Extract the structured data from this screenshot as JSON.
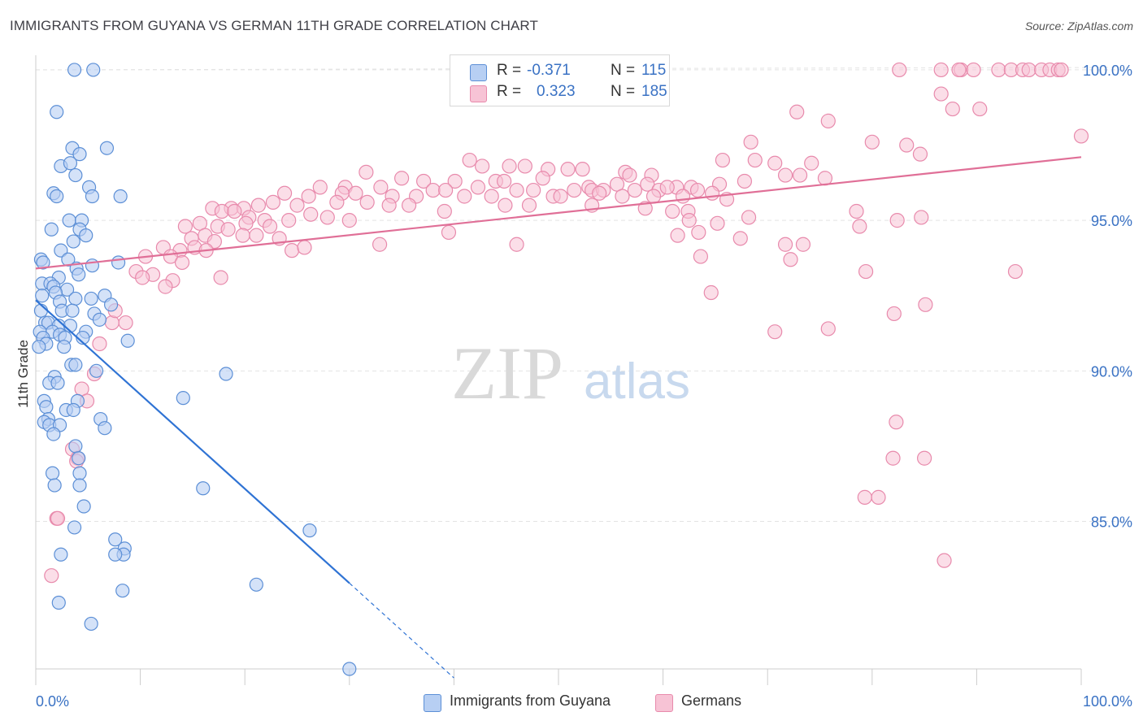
{
  "header": {
    "title": "IMMIGRANTS FROM GUYANA VS GERMAN 11TH GRADE CORRELATION CHART",
    "source": "Source: ZipAtlas.com"
  },
  "watermark": {
    "zip": "ZIP",
    "atlas": "atlas"
  },
  "legend": {
    "rows": [
      {
        "r_label": "R =",
        "r_value": "-0.371",
        "n_label": "N =",
        "n_value": "115"
      },
      {
        "r_label": "R =",
        "r_value": "0.323",
        "n_label": "N =",
        "n_value": "185"
      }
    ]
  },
  "bottom_legend": {
    "guyana": "Immigrants from Guyana",
    "germans": "Germans"
  },
  "colors": {
    "guyana_fill": "#b7cff3",
    "guyana_stroke": "#5c8fd6",
    "guyana_line": "#2f73d4",
    "germans_fill": "#f7c3d5",
    "germans_stroke": "#e88aac",
    "germans_line": "#e06f97",
    "tick_label": "#3a72c4",
    "grid": "#e4e4e4"
  },
  "chart_data": {
    "type": "scatter",
    "title": "IMMIGRANTS FROM GUYANA VS GERMAN 11TH GRADE CORRELATION CHART",
    "xlabel": "",
    "ylabel": "11th Grade",
    "xlim": [
      0,
      100
    ],
    "ylim": [
      80.1,
      100.7
    ],
    "x_tick_labels": [
      "0.0%",
      "100.0%"
    ],
    "y_ticks": [
      85,
      90,
      95,
      100
    ],
    "y_tick_labels": [
      "85.0%",
      "90.0%",
      "95.0%",
      "100.0%"
    ],
    "grid": true,
    "legend_position": "top-center",
    "series": [
      {
        "name": "Immigrants from Guyana",
        "r": -0.371,
        "n": 115,
        "trend": {
          "x": [
            0,
            30
          ],
          "y": [
            92.35,
            82.95
          ]
        },
        "trend_dashed": {
          "x": [
            30,
            40
          ],
          "y": [
            82.95,
            79.8
          ]
        },
        "points": [
          [
            3.7,
            100
          ],
          [
            5.5,
            100
          ],
          [
            2,
            98.6
          ],
          [
            3.5,
            97.4
          ],
          [
            4.2,
            97.2
          ],
          [
            6.8,
            97.4
          ],
          [
            2.4,
            96.8
          ],
          [
            3.3,
            96.9
          ],
          [
            3.8,
            96.5
          ],
          [
            5.1,
            96.1
          ],
          [
            1.7,
            95.9
          ],
          [
            2.0,
            95.8
          ],
          [
            5.4,
            95.8
          ],
          [
            8.1,
            95.8
          ],
          [
            3.2,
            95.0
          ],
          [
            4.4,
            95.0
          ],
          [
            1.5,
            94.7
          ],
          [
            4.2,
            94.7
          ],
          [
            4.8,
            94.5
          ],
          [
            3.6,
            94.3
          ],
          [
            2.4,
            94.0
          ],
          [
            0.5,
            93.7
          ],
          [
            0.7,
            93.6
          ],
          [
            3.1,
            93.7
          ],
          [
            5.4,
            93.5
          ],
          [
            7.9,
            93.6
          ],
          [
            3.9,
            93.4
          ],
          [
            4.1,
            93.2
          ],
          [
            2.2,
            93.1
          ],
          [
            0.6,
            92.9
          ],
          [
            1.4,
            92.9
          ],
          [
            1.7,
            92.8
          ],
          [
            3.0,
            92.7
          ],
          [
            1.9,
            92.6
          ],
          [
            0.6,
            92.5
          ],
          [
            3.8,
            92.4
          ],
          [
            5.3,
            92.4
          ],
          [
            6.6,
            92.5
          ],
          [
            2.3,
            92.3
          ],
          [
            7.2,
            92.2
          ],
          [
            0.5,
            92.0
          ],
          [
            2.5,
            92.0
          ],
          [
            3.5,
            92.0
          ],
          [
            5.6,
            91.9
          ],
          [
            6.1,
            91.7
          ],
          [
            0.9,
            91.6
          ],
          [
            1.2,
            91.6
          ],
          [
            2.2,
            91.5
          ],
          [
            3.3,
            91.5
          ],
          [
            0.4,
            91.3
          ],
          [
            1.6,
            91.3
          ],
          [
            2.3,
            91.2
          ],
          [
            4.8,
            91.3
          ],
          [
            0.7,
            91.1
          ],
          [
            2.8,
            91.1
          ],
          [
            4.5,
            91.1
          ],
          [
            8.8,
            91.0
          ],
          [
            1.0,
            90.9
          ],
          [
            0.3,
            90.8
          ],
          [
            2.7,
            90.8
          ],
          [
            3.4,
            90.2
          ],
          [
            3.8,
            90.2
          ],
          [
            5.8,
            90.0
          ],
          [
            1.8,
            89.8
          ],
          [
            1.3,
            89.6
          ],
          [
            2.1,
            89.6
          ],
          [
            18.2,
            89.9
          ],
          [
            4.0,
            89.0
          ],
          [
            14.1,
            89.1
          ],
          [
            0.8,
            89.0
          ],
          [
            1.0,
            88.8
          ],
          [
            2.9,
            88.7
          ],
          [
            3.6,
            88.7
          ],
          [
            6.2,
            88.4
          ],
          [
            1.2,
            88.4
          ],
          [
            0.8,
            88.3
          ],
          [
            1.3,
            88.2
          ],
          [
            2.3,
            88.2
          ],
          [
            6.6,
            88.1
          ],
          [
            1.7,
            87.9
          ],
          [
            3.8,
            87.5
          ],
          [
            4.1,
            87.1
          ],
          [
            1.6,
            86.6
          ],
          [
            4.2,
            86.6
          ],
          [
            1.8,
            86.2
          ],
          [
            4.2,
            86.2
          ],
          [
            16,
            86.1
          ],
          [
            4.6,
            85.5
          ],
          [
            3.7,
            84.8
          ],
          [
            26.2,
            84.7
          ],
          [
            7.6,
            84.4
          ],
          [
            8.5,
            84.1
          ],
          [
            8.4,
            83.9
          ],
          [
            7.6,
            83.9
          ],
          [
            2.4,
            83.9
          ],
          [
            21.1,
            82.9
          ],
          [
            8.3,
            82.7
          ],
          [
            2.2,
            82.3
          ],
          [
            5.3,
            81.6
          ],
          [
            30,
            80.1
          ]
        ]
      },
      {
        "name": "Germans",
        "r": 0.323,
        "n": 185,
        "trend": {
          "x": [
            0,
            100
          ],
          "y": [
            93.4,
            97.1
          ]
        },
        "points": [
          [
            82.6,
            100
          ],
          [
            86.6,
            100
          ],
          [
            88.5,
            100
          ],
          [
            88.3,
            100
          ],
          [
            89.7,
            100
          ],
          [
            92.1,
            100
          ],
          [
            93.3,
            100
          ],
          [
            94.4,
            100
          ],
          [
            95.0,
            100
          ],
          [
            96.2,
            100
          ],
          [
            97.0,
            100
          ],
          [
            97.8,
            100
          ],
          [
            98.1,
            100
          ],
          [
            86.6,
            99.2
          ],
          [
            90.3,
            98.7
          ],
          [
            87.7,
            98.7
          ],
          [
            72.8,
            98.6
          ],
          [
            75.8,
            98.3
          ],
          [
            100,
            97.8
          ],
          [
            68.4,
            97.6
          ],
          [
            80.0,
            97.6
          ],
          [
            83.3,
            97.5
          ],
          [
            84.6,
            97.2
          ],
          [
            65.7,
            97.0
          ],
          [
            68.8,
            97.0
          ],
          [
            70.7,
            96.9
          ],
          [
            74.2,
            96.9
          ],
          [
            41.5,
            97.0
          ],
          [
            42.7,
            96.8
          ],
          [
            45.3,
            96.8
          ],
          [
            46.8,
            96.8
          ],
          [
            49.0,
            96.7
          ],
          [
            50.9,
            96.7
          ],
          [
            52.3,
            96.7
          ],
          [
            56.4,
            96.6
          ],
          [
            56.8,
            96.5
          ],
          [
            58.9,
            96.5
          ],
          [
            71.7,
            96.5
          ],
          [
            73.1,
            96.5
          ],
          [
            75.5,
            96.4
          ],
          [
            31.6,
            96.6
          ],
          [
            35.0,
            96.4
          ],
          [
            37.1,
            96.3
          ],
          [
            40.1,
            96.3
          ],
          [
            44.0,
            96.3
          ],
          [
            44.8,
            96.3
          ],
          [
            48.5,
            96.4
          ],
          [
            52.9,
            96.1
          ],
          [
            55.6,
            96.2
          ],
          [
            58.5,
            96.2
          ],
          [
            61.3,
            96.1
          ],
          [
            62.7,
            96.1
          ],
          [
            65.4,
            96.2
          ],
          [
            67.8,
            96.3
          ],
          [
            27.2,
            96.1
          ],
          [
            29.6,
            96.1
          ],
          [
            33.0,
            96.1
          ],
          [
            38.0,
            96.0
          ],
          [
            39.2,
            96.0
          ],
          [
            42.3,
            96.1
          ],
          [
            46.0,
            96.0
          ],
          [
            47.6,
            96.0
          ],
          [
            51.5,
            96.0
          ],
          [
            53.2,
            96.0
          ],
          [
            54.3,
            96.0
          ],
          [
            57.3,
            96.0
          ],
          [
            59.6,
            96.0
          ],
          [
            60.4,
            96.1
          ],
          [
            63.3,
            96.0
          ],
          [
            64.7,
            95.9
          ],
          [
            23.8,
            95.9
          ],
          [
            26.1,
            95.8
          ],
          [
            29.3,
            95.9
          ],
          [
            30.6,
            95.9
          ],
          [
            34.1,
            95.8
          ],
          [
            36.4,
            95.8
          ],
          [
            41.0,
            95.8
          ],
          [
            43.6,
            95.8
          ],
          [
            49.5,
            95.8
          ],
          [
            50.2,
            95.8
          ],
          [
            53.9,
            95.9
          ],
          [
            56.1,
            95.8
          ],
          [
            59.1,
            95.8
          ],
          [
            61.9,
            95.8
          ],
          [
            66.1,
            95.7
          ],
          [
            18.7,
            95.4
          ],
          [
            19.9,
            95.4
          ],
          [
            21.3,
            95.5
          ],
          [
            22.7,
            95.6
          ],
          [
            25.0,
            95.5
          ],
          [
            28.8,
            95.6
          ],
          [
            31.7,
            95.6
          ],
          [
            33.8,
            95.5
          ],
          [
            35.7,
            95.5
          ],
          [
            44.9,
            95.5
          ],
          [
            47.2,
            95.5
          ],
          [
            53.2,
            95.5
          ],
          [
            58.3,
            95.4
          ],
          [
            60.9,
            95.3
          ],
          [
            62.4,
            95.3
          ],
          [
            16.9,
            95.4
          ],
          [
            17.8,
            95.3
          ],
          [
            19.0,
            95.3
          ],
          [
            20.4,
            95.1
          ],
          [
            21.9,
            95.0
          ],
          [
            24.2,
            95.0
          ],
          [
            26.3,
            95.2
          ],
          [
            27.9,
            95.1
          ],
          [
            39.1,
            95.3
          ],
          [
            62.5,
            95.0
          ],
          [
            65.2,
            94.9
          ],
          [
            68.2,
            95.1
          ],
          [
            78.5,
            95.3
          ],
          [
            82.4,
            95.0
          ],
          [
            84.7,
            95.1
          ],
          [
            14.3,
            94.8
          ],
          [
            15.7,
            94.9
          ],
          [
            17.4,
            94.8
          ],
          [
            18.4,
            94.7
          ],
          [
            20.1,
            94.9
          ],
          [
            22.4,
            94.8
          ],
          [
            14.9,
            94.4
          ],
          [
            16.2,
            94.5
          ],
          [
            17.1,
            94.3
          ],
          [
            19.8,
            94.5
          ],
          [
            21.1,
            94.5
          ],
          [
            23.3,
            94.4
          ],
          [
            12.2,
            94.1
          ],
          [
            13.8,
            94.0
          ],
          [
            15.2,
            94.1
          ],
          [
            16.3,
            94.0
          ],
          [
            24.5,
            94.0
          ],
          [
            25.7,
            94.1
          ],
          [
            30.0,
            95.0
          ],
          [
            32.9,
            94.2
          ],
          [
            39.5,
            94.6
          ],
          [
            46.0,
            94.2
          ],
          [
            10.5,
            93.8
          ],
          [
            12.9,
            93.8
          ],
          [
            14.0,
            93.6
          ],
          [
            61.4,
            94.5
          ],
          [
            63.4,
            94.6
          ],
          [
            67.4,
            94.4
          ],
          [
            71.7,
            94.2
          ],
          [
            73.4,
            94.2
          ],
          [
            78.8,
            94.8
          ],
          [
            9.6,
            93.3
          ],
          [
            11.2,
            93.2
          ],
          [
            13.1,
            93.0
          ],
          [
            17.7,
            93.1
          ],
          [
            63.6,
            93.8
          ],
          [
            72.2,
            93.7
          ],
          [
            79.4,
            93.3
          ],
          [
            93.7,
            93.3
          ],
          [
            10.2,
            93.1
          ],
          [
            12.4,
            92.8
          ],
          [
            82.1,
            91.9
          ],
          [
            85.1,
            92.2
          ],
          [
            64.6,
            92.6
          ],
          [
            7.3,
            91.6
          ],
          [
            8.6,
            91.6
          ],
          [
            7.6,
            92.0
          ],
          [
            70.7,
            91.3
          ],
          [
            75.8,
            91.4
          ],
          [
            6.1,
            90.9
          ],
          [
            5.6,
            89.9
          ],
          [
            4.4,
            89.4
          ],
          [
            4.9,
            89.0
          ],
          [
            82.3,
            88.3
          ],
          [
            3.5,
            87.4
          ],
          [
            4.0,
            87.1
          ],
          [
            3.9,
            87.0
          ],
          [
            82.0,
            87.1
          ],
          [
            85.0,
            87.1
          ],
          [
            79.3,
            85.8
          ],
          [
            80.6,
            85.8
          ],
          [
            2.0,
            85.1
          ],
          [
            2.1,
            85.1
          ],
          [
            1.5,
            83.2
          ],
          [
            86.9,
            83.7
          ]
        ]
      }
    ]
  }
}
